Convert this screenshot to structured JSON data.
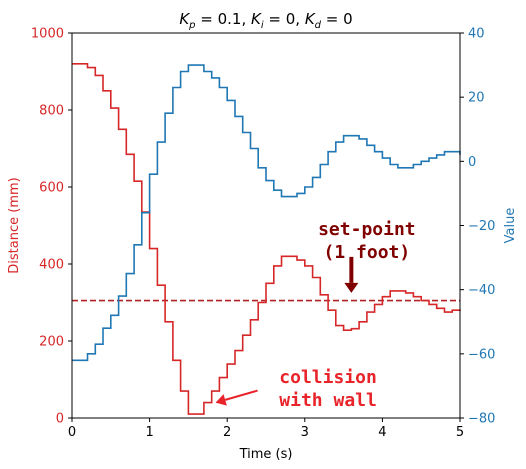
{
  "chart_data": {
    "type": "line",
    "title": "K_p = 0.1, K_i = 0, K_d = 0",
    "title_parts": {
      "kp_sym": "K",
      "kp_sub": "p",
      "kp_val": " = 0.1, ",
      "ki_sym": "K",
      "ki_sub": "i",
      "ki_val": " = 0, ",
      "kd_sym": "K",
      "kd_sub": "d",
      "kd_val": " = 0"
    },
    "xlabel": "Time (s)",
    "ylabel_left": "Distance (mm)",
    "ylabel_right": "Value",
    "xlim": [
      0,
      5
    ],
    "ylim_left": [
      0,
      1000
    ],
    "ylim_right": [
      -80,
      40
    ],
    "xticks": [
      "0",
      "1",
      "2",
      "3",
      "4",
      "5"
    ],
    "yticks_left": [
      "0",
      "200",
      "400",
      "600",
      "800",
      "1000"
    ],
    "yticks_right": [
      "−80",
      "−60",
      "−40",
      "−20",
      "0",
      "20",
      "40"
    ],
    "grid": false,
    "colors": {
      "distance": "#d62728",
      "value": "#1f77b4",
      "setpoint": "#b22222",
      "setpoint_annotation": "#800000",
      "collision_annotation": "#e8232a"
    },
    "setpoint_mm": 305,
    "annotations": [
      {
        "id": "setpoint",
        "lines": [
          "set-point",
          "(1 foot)"
        ],
        "arrow_to": [
          3.6,
          325
        ],
        "text_at": [
          3.8,
          450
        ]
      },
      {
        "id": "collision",
        "lines": [
          "collision",
          "with wall"
        ],
        "arrow_to": [
          1.85,
          40
        ],
        "text_at": [
          3.3,
          80
        ]
      }
    ],
    "series": [
      {
        "axis": "left",
        "x": [
          0,
          0.1,
          0.2,
          0.3,
          0.4,
          0.5,
          0.6,
          0.7,
          0.8,
          0.9,
          1.0,
          1.1,
          1.2,
          1.3,
          1.4,
          1.5,
          1.6,
          1.7,
          1.8,
          1.9,
          2.0,
          2.1,
          2.2,
          2.3,
          2.4,
          2.5,
          2.6,
          2.7,
          2.8,
          2.9,
          3.0,
          3.1,
          3.2,
          3.3,
          3.4,
          3.5,
          3.6,
          3.7,
          3.8,
          3.9,
          4.0,
          4.1,
          4.2,
          4.3,
          4.4,
          4.5,
          4.6,
          4.7,
          4.8,
          4.9,
          5.0
        ],
        "y": [
          920,
          920,
          910,
          890,
          850,
          805,
          750,
          685,
          615,
          535,
          440,
          345,
          250,
          150,
          70,
          10,
          10,
          40,
          70,
          105,
          140,
          175,
          215,
          255,
          300,
          350,
          395,
          420,
          420,
          410,
          395,
          365,
          320,
          280,
          240,
          228,
          232,
          250,
          275,
          295,
          315,
          330,
          330,
          325,
          315,
          305,
          295,
          285,
          275,
          280,
          282
        ]
      },
      {
        "axis": "right",
        "x": [
          0,
          0.1,
          0.2,
          0.3,
          0.4,
          0.5,
          0.6,
          0.7,
          0.8,
          0.9,
          1.0,
          1.1,
          1.2,
          1.3,
          1.4,
          1.5,
          1.6,
          1.7,
          1.8,
          1.9,
          2.0,
          2.1,
          2.2,
          2.3,
          2.4,
          2.5,
          2.6,
          2.7,
          2.8,
          2.9,
          3.0,
          3.1,
          3.2,
          3.3,
          3.4,
          3.5,
          3.6,
          3.7,
          3.8,
          3.9,
          4.0,
          4.1,
          4.2,
          4.3,
          4.4,
          4.5,
          4.6,
          4.7,
          4.8,
          4.9,
          5.0
        ],
        "y": [
          -62,
          -62,
          -60,
          -57,
          -52,
          -48,
          -42,
          -35,
          -26,
          -16,
          -4,
          6,
          15,
          23,
          28,
          30,
          30,
          28,
          26,
          23,
          19,
          14,
          9,
          4,
          -2,
          -6,
          -9,
          -11,
          -11,
          -10,
          -8,
          -5,
          -1,
          3,
          6,
          8,
          8,
          7,
          5,
          3,
          1,
          -1,
          -2,
          -2,
          -1,
          0,
          1,
          2,
          3,
          3,
          2
        ]
      }
    ]
  }
}
